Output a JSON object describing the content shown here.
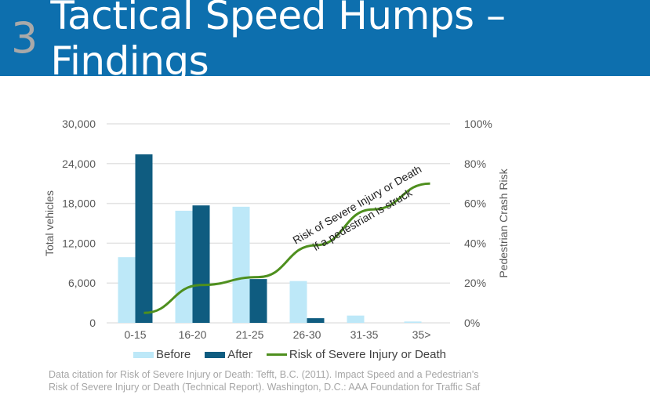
{
  "slide": {
    "number": "3",
    "title": "Tactical Speed Humps – Findings"
  },
  "colors": {
    "banner": "#0d6fae",
    "before": "#bde8f8",
    "after": "#0f5c80",
    "risk": "#4e8f1e"
  },
  "chart_data": {
    "type": "bar",
    "categories": [
      "0-15",
      "16-20",
      "21-25",
      "26-30",
      "31-35",
      "35>"
    ],
    "series": [
      {
        "name": "Before",
        "type": "bar",
        "axis": "left",
        "values": [
          9900,
          16900,
          17500,
          6300,
          1100,
          200
        ]
      },
      {
        "name": "After",
        "type": "bar",
        "axis": "left",
        "values": [
          25400,
          17700,
          6600,
          700,
          0,
          0
        ]
      },
      {
        "name": "Risk of Severe Injury or Death",
        "type": "line",
        "axis": "right",
        "values": [
          5,
          19,
          23,
          39,
          57,
          70
        ]
      }
    ],
    "ylabel": "Total vehicles",
    "y2label": "Pedestrian Crash Risk",
    "ylim": [
      0,
      30000
    ],
    "y2lim": [
      0,
      100
    ],
    "yticks": [
      "0",
      "6,000",
      "12,000",
      "18,000",
      "24,000",
      "30,000"
    ],
    "y2ticks": [
      "0%",
      "20%",
      "40%",
      "60%",
      "80%",
      "100%"
    ],
    "grid": true,
    "legend": "bottom",
    "annotation": {
      "line1": "Risk of Severe Injury or Death",
      "line2": "if a pedestrian is struck"
    }
  },
  "citation": {
    "line1": "Data citation for Risk of Severe Injury or Death: Tefft, B.C. (2011). Impact Speed and a Pedestrian's",
    "line2": "Risk of Severe Injury or Death (Technical Report). Washington, D.C.: AAA Foundation for Traffic Saf"
  }
}
